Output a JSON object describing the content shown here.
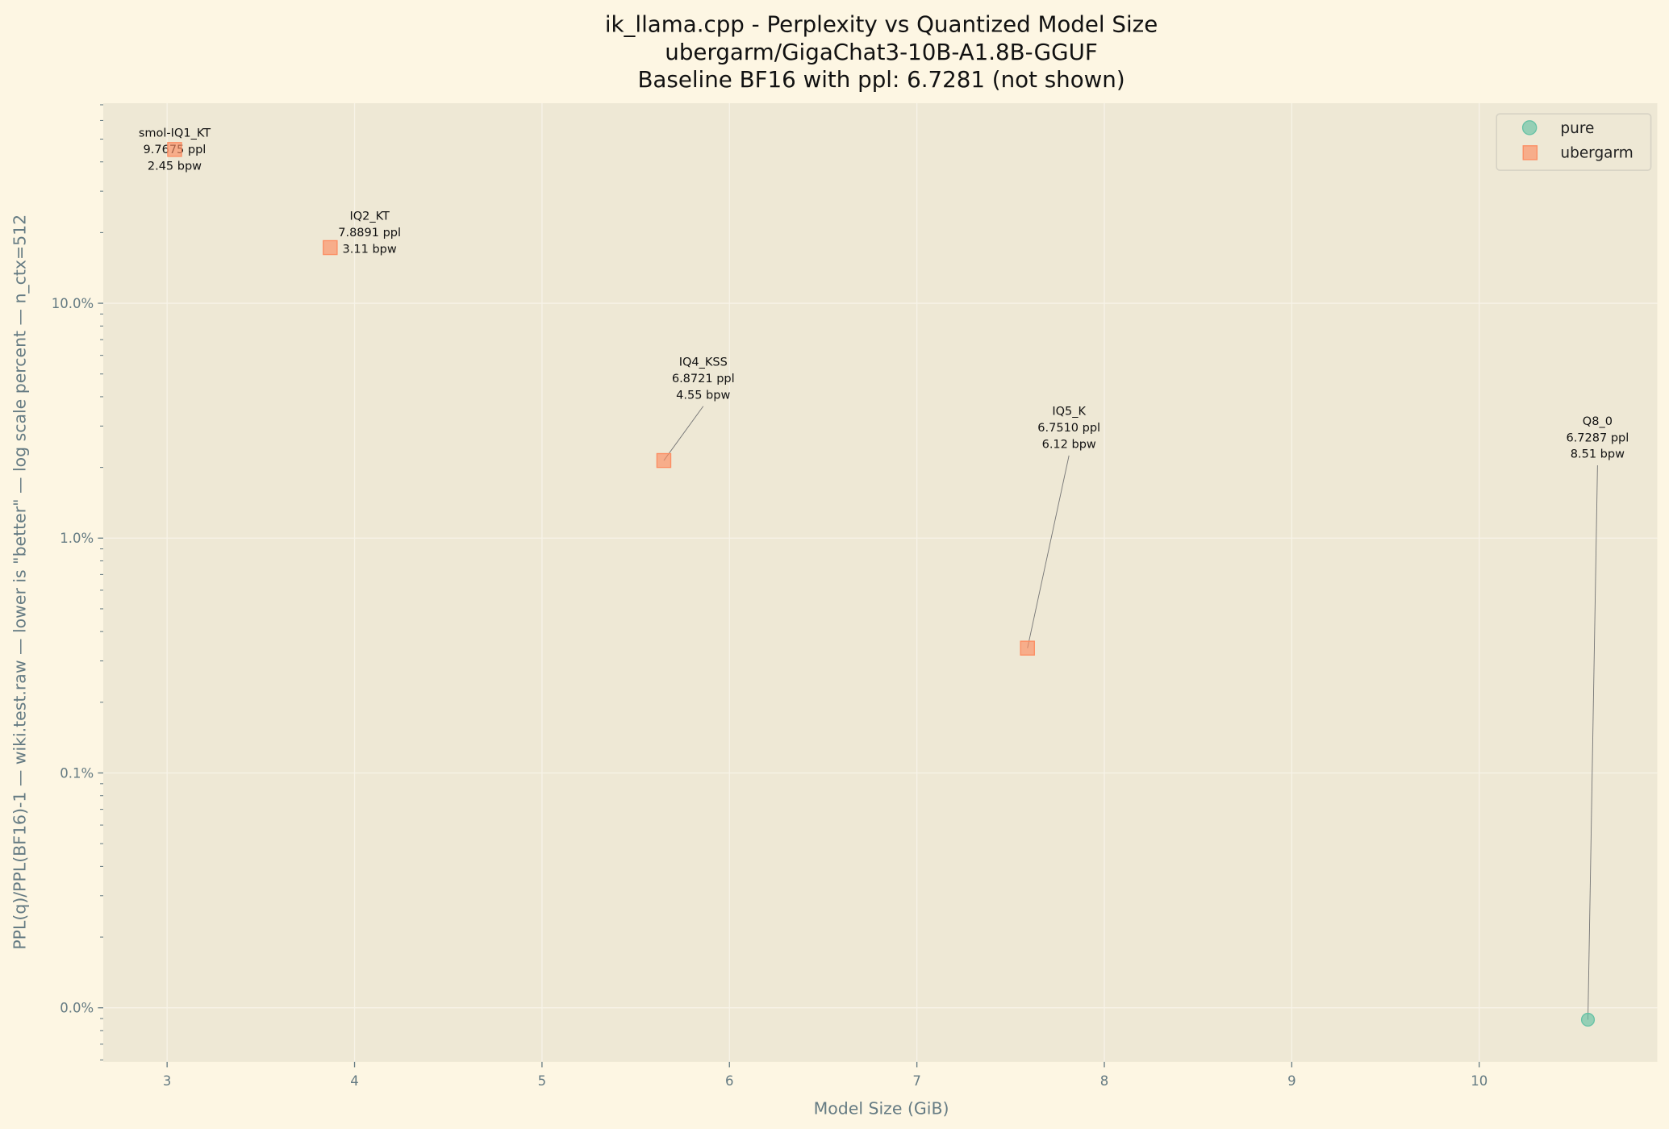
{
  "chart_data": {
    "type": "scatter",
    "title": "ik_llama.cpp - Perplexity vs Quantized Model Size",
    "subtitle": "ubergarm/GigaChat3-10B-A1.8B-GGUF",
    "subtitle2": "Baseline BF16 with ppl: 6.7281 (not shown)",
    "xlabel": "Model Size (GiB)",
    "ylabel": "PPL(q)/PPL(BF16)-1 — wiki.test.raw — lower is \"better\" — log scale percent — n_ctx=512",
    "xlim": [
      2.66,
      10.95
    ],
    "ylim_percent": [
      0.0059,
      71
    ],
    "yscale": "log",
    "xticks": [
      "3",
      "4",
      "5",
      "6",
      "7",
      "8",
      "9",
      "10"
    ],
    "xtick_values": [
      3,
      4,
      5,
      6,
      7,
      8,
      9,
      10
    ],
    "yticks": [
      "10.0%",
      "1.0%",
      "0.1%",
      "0.0%"
    ],
    "ytick_values": [
      10,
      1,
      0.1,
      0.01
    ],
    "grid": true,
    "legend_placement": "top-right",
    "series": [
      {
        "name": "pure",
        "marker": "circle",
        "color": "#66c2a5",
        "points": [
          {
            "label": "Q8_0",
            "ppl": "6.7287 ppl",
            "bpw": "8.51 bpw",
            "x": 10.58,
            "y": 0.0089
          }
        ]
      },
      {
        "name": "ubergarm",
        "marker": "square",
        "color": "#fc8d62",
        "points": [
          {
            "label": "smol-IQ1_KT",
            "ppl": "9.7675 ppl",
            "bpw": "2.45 bpw",
            "x": 3.04,
            "y": 45.17
          },
          {
            "label": "IQ2_KT",
            "ppl": "7.8891 ppl",
            "bpw": "3.11 bpw",
            "x": 3.87,
            "y": 17.26
          },
          {
            "label": "IQ4_KSS",
            "ppl": "6.8721 ppl",
            "bpw": "4.55 bpw",
            "x": 5.65,
            "y": 2.14
          },
          {
            "label": "IQ5_K",
            "ppl": "6.7510 ppl",
            "bpw": "6.12 bpw",
            "x": 7.59,
            "y": 0.34
          }
        ]
      }
    ]
  }
}
